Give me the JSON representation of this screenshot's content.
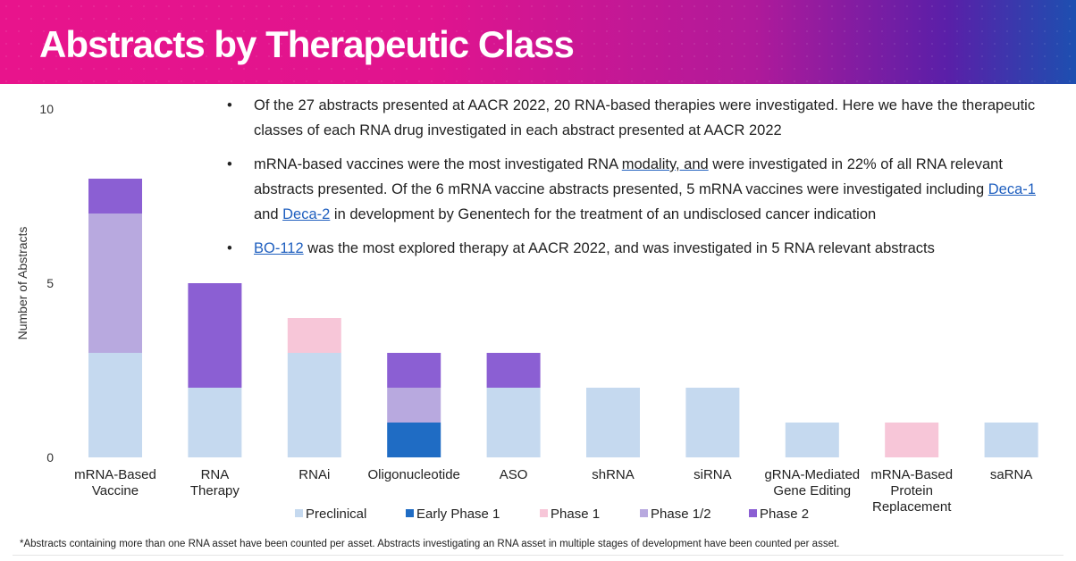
{
  "header": {
    "title": "Abstracts by Therapeutic Class"
  },
  "bullets": {
    "b1": "Of the 27 abstracts presented at AACR 2022, 20 RNA-based therapies were investigated. Here we have the therapeutic classes of each RNA drug investigated in each abstract presented at AACR 2022",
    "b2_pre": "mRNA-based vaccines were the most investigated RNA ",
    "b2_mod": "modality, and",
    "b2_mid": " were investigated in 22% of all RNA relevant abstracts presented. Of the 6 mRNA vaccine abstracts presented, 5 mRNA vaccines were investigated including ",
    "b2_link1": "Deca-1",
    "b2_and": " and ",
    "b2_link2": "Deca-2",
    "b2_post": " in development by Genentech for the treatment of an undisclosed cancer indication",
    "b3_link": "BO-112",
    "b3_post": " was the most explored therapy at AACR 2022, and was investigated in 5 RNA relevant abstracts"
  },
  "footnote": "*Abstracts containing more than one RNA asset have been counted per asset. Abstracts investigating an RNA asset in multiple stages of development have been counted per asset.",
  "chart_data": {
    "type": "bar",
    "stacked": true,
    "categories": [
      "mRNA-Based Vaccine",
      "RNA Therapy",
      "RNAi",
      "Oligonucleotide",
      "ASO",
      "shRNA",
      "siRNA",
      "gRNA-Mediated Gene Editing",
      "mRNA-Based Protein Replacement",
      "saRNA"
    ],
    "category_lines": [
      [
        "mRNA-Based",
        "Vaccine"
      ],
      [
        "RNA",
        "Therapy"
      ],
      [
        "RNAi"
      ],
      [
        "Oligonucleotide"
      ],
      [
        "ASO"
      ],
      [
        "shRNA"
      ],
      [
        "siRNA"
      ],
      [
        "gRNA-Mediated",
        "Gene Editing"
      ],
      [
        "mRNA-Based",
        "Protein",
        "Replacement"
      ],
      [
        "saRNA"
      ]
    ],
    "series": [
      {
        "name": "Preclinical",
        "color": "#c5d9ef",
        "values": [
          3,
          2,
          3,
          0,
          2,
          2,
          2,
          1,
          0,
          1
        ]
      },
      {
        "name": "Early Phase 1",
        "color": "#1f6cc4",
        "values": [
          0,
          0,
          0,
          1,
          0,
          0,
          0,
          0,
          0,
          0
        ]
      },
      {
        "name": "Phase 1",
        "color": "#f7c6d8",
        "values": [
          0,
          0,
          1,
          0,
          0,
          0,
          0,
          0,
          1,
          0
        ]
      },
      {
        "name": "Phase 1/2",
        "color": "#b8a9df",
        "values": [
          4,
          0,
          0,
          1,
          0,
          0,
          0,
          0,
          0,
          0
        ]
      },
      {
        "name": "Phase 2",
        "color": "#8b5fd3",
        "values": [
          1,
          3,
          0,
          1,
          1,
          0,
          0,
          0,
          0,
          0
        ]
      }
    ],
    "ylabel": "Number of Abstracts",
    "yticks": [
      0,
      5,
      10
    ],
    "ylim": [
      0,
      10
    ],
    "legend_position": "bottom",
    "grid": false
  }
}
